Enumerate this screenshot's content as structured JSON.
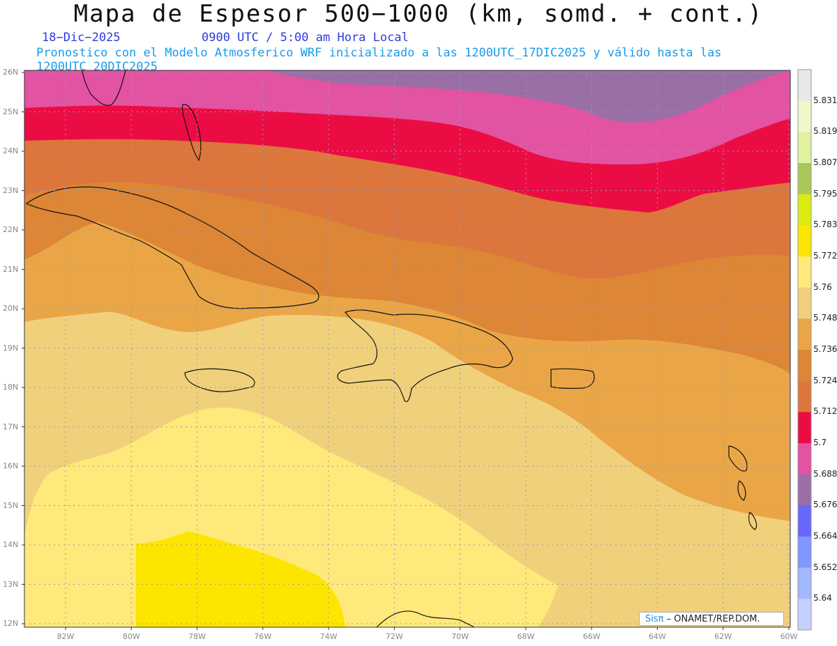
{
  "header": {
    "title": "Mapa de Espesor 500−1000 (km, somd. + cont.)",
    "date": "18−Dic−2025",
    "time": "0900 UTC / 5:00 am Hora Local",
    "description": "Pronostico con el Modelo Atmosferico WRF inicializado a las 1200UTC_17DIC2025 y válido hasta las  1200UTC_20DIC2025"
  },
  "axes": {
    "lat_labels": [
      "26N",
      "25N",
      "24N",
      "23N",
      "22N",
      "21N",
      "20N",
      "19N",
      "18N",
      "17N",
      "16N",
      "15N",
      "14N",
      "13N",
      "12N"
    ],
    "lon_labels": [
      "82W",
      "80W",
      "78W",
      "76W",
      "74W",
      "72W",
      "70W",
      "68W",
      "66W",
      "64W",
      "62W",
      "60W"
    ]
  },
  "colorbar": {
    "labels": [
      "5.831",
      "5.819",
      "5.807",
      "5.795",
      "5.783",
      "5.772",
      "5.76",
      "5.748",
      "5.736",
      "5.724",
      "5.712",
      "5.7",
      "5.688",
      "5.676",
      "5.664",
      "5.652",
      "5.64"
    ],
    "colors": [
      "#e8e8e8",
      "#f1f7c9",
      "#e0f2a0",
      "#a8c85a",
      "#dcea14",
      "#fce600",
      "#ffe97a",
      "#f1d07c",
      "#eaa646",
      "#dc8636",
      "#dc763c",
      "#ec0c44",
      "#e253a1",
      "#9a6fa6",
      "#6868ff",
      "#7f98ff",
      "#a2b8ff",
      "#c4d0ff"
    ]
  },
  "credit": {
    "brand": "Sisπ",
    "org": "– ONAMET/REP.DOM."
  },
  "map_colors": {
    "band_5_64": "#c4d0ff",
    "band_5_664": "#6868ff",
    "band_5_676": "#9a6fa6",
    "band_5_688": "#e253a1",
    "band_5_7": "#ec0c44",
    "band_5_712": "#dc763c",
    "band_5_724": "#dc8636",
    "band_5_736": "#eaa646",
    "band_5_748": "#f1d07c",
    "band_5_76": "#ffe97a",
    "band_5_772": "#fce600"
  }
}
